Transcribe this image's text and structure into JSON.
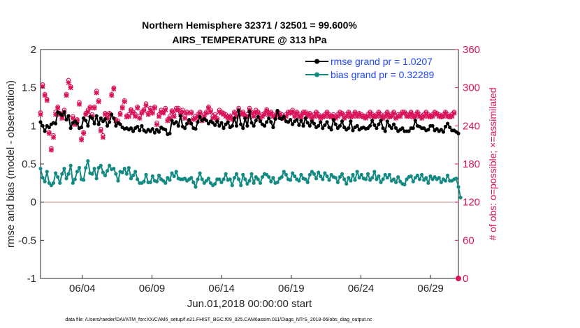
{
  "chart_data": {
    "type": "line",
    "title": "Northern Hemisphere 32371 / 32501 = 99.600%",
    "subtitle": "AIRS_TEMPERATURE @ 313 hPa",
    "xlabel": "Jun.01,2018 00:00:00 start",
    "ylabel": "rmse and bias (model - observation)",
    "ylabel_right": "# of obs: o=possible; ×=assimilated",
    "x_tick_labels": [
      "06/04",
      "06/09",
      "06/14",
      "06/19",
      "06/24",
      "06/29"
    ],
    "x_tick_days": [
      4,
      9,
      14,
      19,
      24,
      29
    ],
    "xlim_days": [
      1,
      31
    ],
    "ylim": [
      -1,
      2
    ],
    "y_ticks": [
      "-1",
      "-0.5",
      "0",
      "0.5",
      "1",
      "1.5",
      "2"
    ],
    "ylim_right": [
      0,
      360
    ],
    "y_ticks_right": [
      "0",
      "60",
      "120",
      "180",
      "240",
      "300",
      "360"
    ],
    "grid": false,
    "legend_position": "top-right",
    "colors": {
      "rmse": "#000000",
      "bias": "#138a82",
      "obs": "#d9145a",
      "zero_line": "#c9a8a8",
      "legend_text": "#1f47ff"
    },
    "series": [
      {
        "name": "rmse grand pr = 1.0207",
        "axis": "left",
        "values": [
          1.05,
          1.0,
          0.93,
          1.0,
          0.98,
          1.02,
          1.04,
          1.03,
          1.18,
          1.16,
          1.14,
          1.18,
          1.08,
          1.13,
          0.97,
          1.04,
          1.06,
          1.03,
          0.97,
          0.98,
          1.1,
          1.07,
          1.0,
          1.12,
          1.1,
          1.03,
          1.13,
          1.02,
          1.1,
          1.06,
          1.09,
          1.0,
          1.05,
          1.15,
          1.1,
          1.0,
          1.04,
          1.02,
          0.98,
          0.96,
          0.97,
          0.95,
          0.97,
          0.93,
          0.97,
          0.99,
          0.94,
          1.0,
          0.94,
          0.92,
          0.95,
          0.93,
          0.96,
          0.91,
          0.95,
          0.92,
          0.98,
          0.96,
          0.95,
          0.89,
          0.9,
          1.07,
          1.03,
          1.05,
          1.0,
          1.13,
          0.99,
          0.97,
          1.03,
          1.08,
          1.03,
          0.97,
          0.96,
          1.05,
          1.12,
          1.07,
          1.09,
          1.07,
          1.03,
          1.06,
          1.04,
          1.01,
          1.06,
          1.0,
          1.04,
          0.97,
          1.02,
          1.05,
          0.98,
          1.0,
          1.1,
          1.0,
          1.2,
          1.02,
          0.97,
          1.1,
          1.0,
          1.19,
          1.04,
          1.0,
          1.07,
          1.12,
          1.06,
          1.02,
          1.0,
          1.05,
          1.1,
          1.05,
          0.98,
          1.09,
          1.2,
          1.1,
          1.09,
          1.12,
          1.06,
          1.05,
          1.08,
          1.02,
          1.06,
          1.08,
          1.01,
          1.07,
          1.0,
          1.1,
          1.04,
          1.0,
          1.06,
          1.03,
          0.98,
          1.0,
          1.05,
          0.97,
          1.01,
          1.05,
          0.98,
          0.95,
          1.08,
          1.02,
          0.97,
          1.0,
          1.06,
          0.98,
          0.95,
          0.97,
          1.06,
          0.94,
          0.98,
          1.0,
          0.95,
          0.97,
          0.98,
          0.96,
          0.97,
          1.0,
          1.07,
          1.01,
          0.97,
          1.02,
          1.07,
          0.97,
          0.93,
          1.06,
          1.0,
          0.97,
          1.02,
          0.97,
          0.93,
          0.95,
          0.97,
          0.93,
          0.93,
          0.93,
          0.97,
          0.97,
          1.07,
          1.0,
          0.99,
          0.97,
          0.97,
          0.94,
          0.95,
          1.0,
          1.0,
          0.94,
          0.96,
          0.93,
          0.95,
          0.92,
          0.99,
          1.03,
          0.98,
          0.94,
          0.94,
          0.92,
          0.9
        ]
      },
      {
        "name": "bias grand pr = 0.32289",
        "axis": "left",
        "values": [
          0.44,
          0.32,
          0.27,
          0.4,
          0.25,
          0.22,
          0.25,
          0.38,
          0.33,
          0.25,
          0.37,
          0.44,
          0.31,
          0.37,
          0.48,
          0.25,
          0.3,
          0.4,
          0.45,
          0.3,
          0.29,
          0.45,
          0.54,
          0.38,
          0.37,
          0.44,
          0.31,
          0.45,
          0.48,
          0.39,
          0.35,
          0.41,
          0.48,
          0.43,
          0.44,
          0.37,
          0.28,
          0.4,
          0.39,
          0.44,
          0.37,
          0.45,
          0.31,
          0.35,
          0.4,
          0.3,
          0.25,
          0.25,
          0.27,
          0.36,
          0.26,
          0.26,
          0.34,
          0.28,
          0.27,
          0.35,
          0.3,
          0.28,
          0.25,
          0.32,
          0.29,
          0.38,
          0.34,
          0.4,
          0.31,
          0.3,
          0.3,
          0.31,
          0.28,
          0.3,
          0.32,
          0.26,
          0.2,
          0.3,
          0.38,
          0.3,
          0.25,
          0.28,
          0.31,
          0.25,
          0.22,
          0.24,
          0.3,
          0.3,
          0.26,
          0.3,
          0.37,
          0.29,
          0.3,
          0.22,
          0.32,
          0.37,
          0.3,
          0.22,
          0.36,
          0.3,
          0.24,
          0.28,
          0.37,
          0.25,
          0.33,
          0.3,
          0.25,
          0.33,
          0.37,
          0.36,
          0.33,
          0.27,
          0.32,
          0.25,
          0.26,
          0.31,
          0.33,
          0.4,
          0.36,
          0.3,
          0.29,
          0.38,
          0.34,
          0.3,
          0.28,
          0.36,
          0.31,
          0.3,
          0.26,
          0.36,
          0.4,
          0.37,
          0.31,
          0.39,
          0.34,
          0.3,
          0.38,
          0.34,
          0.29,
          0.36,
          0.33,
          0.32,
          0.26,
          0.33,
          0.37,
          0.3,
          0.24,
          0.32,
          0.28,
          0.36,
          0.29,
          0.4,
          0.32,
          0.36,
          0.31,
          0.3,
          0.37,
          0.29,
          0.32,
          0.4,
          0.3,
          0.34,
          0.26,
          0.3,
          0.36,
          0.32,
          0.36,
          0.28,
          0.3,
          0.26,
          0.33,
          0.27,
          0.24,
          0.23,
          0.3,
          0.33,
          0.34,
          0.27,
          0.32,
          0.35,
          0.3,
          0.36,
          0.29,
          0.32,
          0.25,
          0.34,
          0.3,
          0.33,
          0.3,
          0.32,
          0.26,
          0.3,
          0.28,
          0.35,
          0.28,
          0.28,
          0.3,
          0.31,
          0.2,
          0.06
        ]
      },
      {
        "name": "obs possible",
        "axis": "right",
        "marker": "o",
        "values": [
          261,
          305,
          290,
          282,
          230,
          205,
          225,
          262,
          270,
          260,
          255,
          265,
          290,
          312,
          302,
          255,
          245,
          250,
          277,
          220,
          230,
          260,
          265,
          270,
          258,
          270,
          295,
          280,
          235,
          225,
          260,
          255,
          260,
          290,
          300,
          250,
          248,
          260,
          270,
          280,
          256,
          258,
          266,
          262,
          258,
          270,
          255,
          262,
          266,
          275,
          260,
          268,
          262,
          270,
          245,
          258,
          265,
          262,
          268,
          250,
          255,
          264,
          258,
          268,
          268,
          260,
          265,
          255,
          262,
          248,
          262,
          252,
          255,
          258,
          262,
          250,
          258,
          262,
          270,
          265,
          255,
          258,
          252,
          265,
          262,
          260,
          258,
          254,
          256,
          252,
          262,
          258,
          268,
          260,
          262,
          256,
          258,
          268,
          262,
          258,
          265,
          262,
          255,
          258,
          260,
          266,
          260,
          262,
          258,
          256,
          262,
          260,
          258,
          254,
          258,
          262,
          262,
          265,
          258,
          262,
          258,
          256,
          262,
          262,
          258,
          260,
          255,
          258,
          262,
          258,
          254,
          256,
          258,
          262,
          258,
          256,
          258,
          255,
          258,
          262,
          260,
          255,
          258,
          262,
          256,
          258,
          262,
          258,
          260,
          258,
          256,
          255,
          258,
          262,
          258,
          256,
          258,
          262,
          258,
          255,
          258,
          262,
          256,
          258,
          262,
          255,
          258,
          258,
          262,
          262,
          258,
          258,
          262,
          256,
          258,
          262,
          258,
          255,
          258,
          262,
          258,
          256,
          258,
          262,
          260,
          258,
          256,
          258,
          262,
          258,
          256,
          258,
          262
        ]
      },
      {
        "name": "obs assimilated",
        "axis": "right",
        "marker": "x",
        "values": [
          258,
          302,
          288,
          280,
          228,
          202,
          222,
          258,
          268,
          258,
          252,
          262,
          288,
          308,
          300,
          252,
          242,
          248,
          274,
          218,
          228,
          258,
          262,
          268,
          255,
          268,
          292,
          278,
          232,
          222,
          258,
          252,
          258,
          288,
          298,
          248,
          245,
          258,
          268,
          278,
          254,
          255,
          264,
          260,
          255,
          268,
          252,
          260,
          264,
          272,
          258,
          265,
          260,
          268,
          242,
          255,
          262,
          260,
          265,
          248,
          252,
          262,
          255,
          265,
          265,
          258,
          262,
          252,
          260,
          245,
          260,
          250,
          252,
          255,
          260,
          248,
          255,
          260,
          268,
          262,
          252,
          255,
          250,
          262,
          260,
          258,
          255,
          252,
          254,
          250,
          260,
          255,
          265,
          258,
          260,
          254,
          255,
          265,
          260,
          255,
          262,
          260,
          252,
          255,
          258,
          264,
          258,
          260,
          255,
          254,
          260,
          258,
          255,
          252,
          255,
          260,
          260,
          262,
          255,
          260,
          255,
          254,
          260,
          260,
          255,
          258,
          252,
          255,
          260,
          255,
          252,
          254,
          255,
          260,
          255,
          254,
          255,
          252,
          255,
          260,
          258,
          252,
          255,
          260,
          254,
          255,
          260,
          255,
          258,
          255,
          254,
          252,
          255,
          260,
          255,
          254,
          255,
          260,
          255,
          252,
          255,
          260,
          254,
          255,
          260,
          252,
          255,
          255,
          260,
          260,
          255,
          255,
          260,
          254,
          255,
          260,
          255,
          252,
          255,
          260,
          255,
          254,
          255,
          260,
          258,
          255,
          254,
          255,
          260,
          255,
          254,
          255,
          260
        ]
      }
    ],
    "footer": "data file: /Users/raeder/DAI/ATM_forcXX/CAM6_setup/f.e21.FHIST_BGC.f09_025.CAM6assim.011/Diags_NTrS_2018-06/obs_diag_output.nc"
  }
}
